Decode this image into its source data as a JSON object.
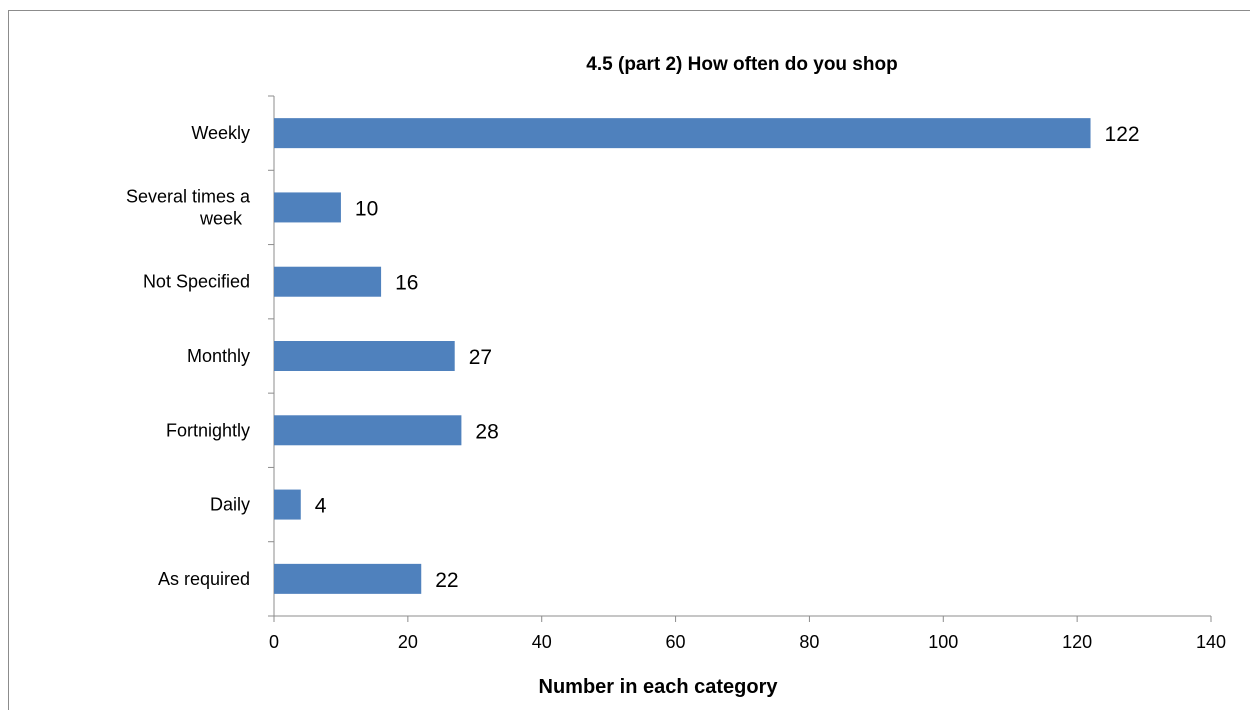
{
  "chart_data": {
    "type": "bar",
    "orientation": "horizontal",
    "title": "4.5 (part 2) How often do you shop",
    "xlabel": "Number in each category",
    "ylabel": "",
    "categories": [
      [
        "Weekly"
      ],
      [
        "Several times a",
        "week"
      ],
      [
        "Not Specified"
      ],
      [
        "Monthly"
      ],
      [
        "Fortnightly"
      ],
      [
        "Daily"
      ],
      [
        "As required"
      ]
    ],
    "values": [
      122,
      10,
      16,
      27,
      28,
      4,
      22
    ],
    "xlim": [
      0,
      140
    ],
    "xticks": [
      0,
      20,
      40,
      60,
      80,
      100,
      120,
      140
    ],
    "grid": false,
    "legend": "none",
    "bar_color": "#4f81bd",
    "data_labels": true
  }
}
